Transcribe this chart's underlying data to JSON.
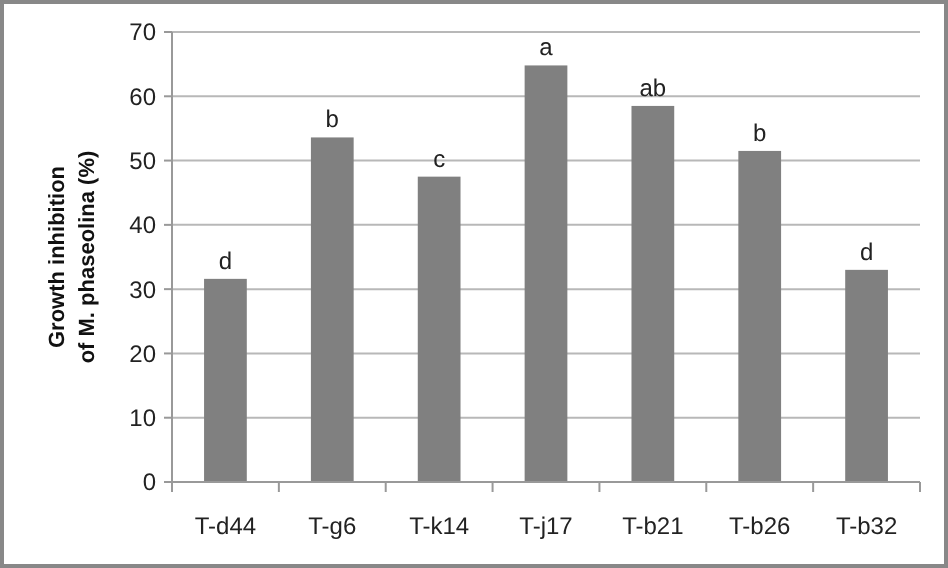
{
  "chart_data": {
    "type": "bar",
    "ylabel": "Growth inhibition\nof M. phaseolina (%)",
    "categories": [
      "T-d44",
      "T-g6",
      "T-k14",
      "T-j17",
      "T-b21",
      "T-b26",
      "T-b32"
    ],
    "values": [
      31.6,
      53.6,
      47.5,
      64.8,
      58.5,
      51.5,
      33.0
    ],
    "value_labels": [
      "d",
      "b",
      "c",
      "a",
      "ab",
      "b",
      "d"
    ],
    "color": "#808080",
    "ylim": [
      0,
      70
    ],
    "yticks": [
      0,
      10,
      20,
      30,
      40,
      50,
      60,
      70
    ],
    "grid": "y"
  }
}
